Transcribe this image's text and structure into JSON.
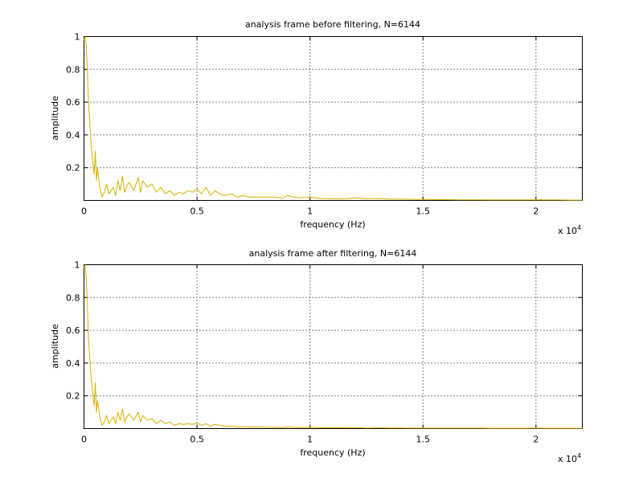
{
  "chart_data": [
    {
      "type": "line",
      "title": "analysis frame before filtering, N=6144",
      "xlabel": "frequency (Hz)",
      "ylabel": "amplitude",
      "x_multiplier": "x 10",
      "x_exponent": "4",
      "xlim": [
        0,
        22050
      ],
      "ylim": [
        0,
        1
      ],
      "grid": true,
      "series_color": "#d9b000",
      "xticks": [
        {
          "value": 0,
          "label": "0"
        },
        {
          "value": 5000,
          "label": "0.5"
        },
        {
          "value": 10000,
          "label": "1"
        },
        {
          "value": 15000,
          "label": "1.5"
        },
        {
          "value": 20000,
          "label": "2"
        }
      ],
      "yticks": [
        {
          "value": 0.2,
          "label": "0.2"
        },
        {
          "value": 0.4,
          "label": "0.4"
        },
        {
          "value": 0.6,
          "label": "0.6"
        },
        {
          "value": 0.8,
          "label": "0.8"
        },
        {
          "value": 1,
          "label": "1"
        }
      ],
      "series": [
        {
          "x": [
            0,
            50,
            100,
            150,
            200,
            300,
            350,
            400,
            450,
            500,
            550,
            600,
            700,
            800,
            900,
            1000,
            1100,
            1200,
            1300,
            1400,
            1500,
            1600,
            1700,
            1800,
            1900,
            2000,
            2200,
            2400,
            2500,
            2600,
            2800,
            3000,
            3200,
            3400,
            3600,
            3800,
            4000,
            4200,
            4400,
            4600,
            4800,
            5000,
            5200,
            5400,
            5600,
            5800,
            6000,
            6200,
            6500,
            6800,
            7000,
            7300,
            7600,
            8000,
            8400,
            8800,
            9000,
            9500,
            10000,
            10500,
            11000,
            11500,
            12000,
            12500,
            13000,
            13500,
            14000,
            14500,
            15000,
            15500,
            16000,
            16500,
            17000,
            17500,
            18000,
            18500,
            19000,
            19500,
            20000,
            20500,
            21000,
            21500,
            22050
          ],
          "y": [
            0.98,
            1.0,
            0.95,
            0.8,
            0.6,
            0.38,
            0.3,
            0.22,
            0.16,
            0.3,
            0.12,
            0.2,
            0.08,
            0.02,
            0.05,
            0.1,
            0.04,
            0.06,
            0.08,
            0.03,
            0.12,
            0.06,
            0.15,
            0.05,
            0.09,
            0.11,
            0.06,
            0.14,
            0.05,
            0.12,
            0.08,
            0.1,
            0.05,
            0.08,
            0.04,
            0.06,
            0.03,
            0.05,
            0.04,
            0.06,
            0.05,
            0.07,
            0.04,
            0.08,
            0.03,
            0.06,
            0.04,
            0.03,
            0.04,
            0.02,
            0.03,
            0.02,
            0.02,
            0.02,
            0.02,
            0.015,
            0.03,
            0.015,
            0.02,
            0.012,
            0.01,
            0.01,
            0.015,
            0.01,
            0.012,
            0.008,
            0.008,
            0.006,
            0.006,
            0.005,
            0.005,
            0.004,
            0.004,
            0.004,
            0.003,
            0.003,
            0.003,
            0.003,
            0.004,
            0.003,
            0.003,
            0.002,
            0.002
          ]
        }
      ]
    },
    {
      "type": "line",
      "title": "analysis frame after filtering, N=6144",
      "xlabel": "frequency (Hz)",
      "ylabel": "amplitude",
      "x_multiplier": "x 10",
      "x_exponent": "4",
      "xlim": [
        0,
        22050
      ],
      "ylim": [
        0,
        1
      ],
      "grid": true,
      "series_color": "#d9b000",
      "xticks": [
        {
          "value": 0,
          "label": "0"
        },
        {
          "value": 5000,
          "label": "0.5"
        },
        {
          "value": 10000,
          "label": "1"
        },
        {
          "value": 15000,
          "label": "1.5"
        },
        {
          "value": 20000,
          "label": "2"
        }
      ],
      "yticks": [
        {
          "value": 0.2,
          "label": "0.2"
        },
        {
          "value": 0.4,
          "label": "0.4"
        },
        {
          "value": 0.6,
          "label": "0.6"
        },
        {
          "value": 0.8,
          "label": "0.8"
        },
        {
          "value": 1,
          "label": "1"
        }
      ],
      "series": [
        {
          "x": [
            0,
            50,
            100,
            150,
            200,
            300,
            350,
            400,
            450,
            500,
            550,
            600,
            700,
            800,
            900,
            1000,
            1100,
            1200,
            1300,
            1400,
            1500,
            1600,
            1700,
            1800,
            1900,
            2000,
            2200,
            2400,
            2500,
            2600,
            2800,
            3000,
            3200,
            3400,
            3600,
            3800,
            4000,
            4200,
            4400,
            4600,
            4800,
            5000,
            5200,
            5400,
            5600,
            5800,
            6000,
            6200,
            6500,
            6800,
            7000,
            7300,
            7600,
            8000,
            8400,
            8800,
            9000,
            9500,
            10000,
            10500,
            11000,
            11500,
            12000,
            12500,
            13000,
            13500,
            14000,
            14500,
            15000,
            15500,
            16000,
            16500,
            17000,
            17500,
            18000,
            18500,
            19000,
            19500,
            20000,
            20500,
            21000,
            21500,
            22050
          ],
          "y": [
            0.98,
            1.0,
            0.92,
            0.76,
            0.55,
            0.34,
            0.27,
            0.2,
            0.14,
            0.28,
            0.1,
            0.17,
            0.07,
            0.02,
            0.04,
            0.08,
            0.03,
            0.05,
            0.07,
            0.03,
            0.1,
            0.05,
            0.12,
            0.04,
            0.07,
            0.09,
            0.05,
            0.1,
            0.04,
            0.08,
            0.05,
            0.06,
            0.03,
            0.05,
            0.03,
            0.04,
            0.02,
            0.03,
            0.025,
            0.03,
            0.025,
            0.035,
            0.02,
            0.03,
            0.015,
            0.025,
            0.02,
            0.015,
            0.015,
            0.01,
            0.012,
            0.01,
            0.01,
            0.008,
            0.008,
            0.006,
            0.01,
            0.006,
            0.008,
            0.005,
            0.005,
            0.005,
            0.006,
            0.004,
            0.005,
            0.004,
            0.004,
            0.003,
            0.003,
            0.003,
            0.003,
            0.003,
            0.003,
            0.003,
            0.002,
            0.002,
            0.002,
            0.002,
            0.003,
            0.002,
            0.002,
            0.002,
            0.002
          ]
        }
      ]
    }
  ]
}
